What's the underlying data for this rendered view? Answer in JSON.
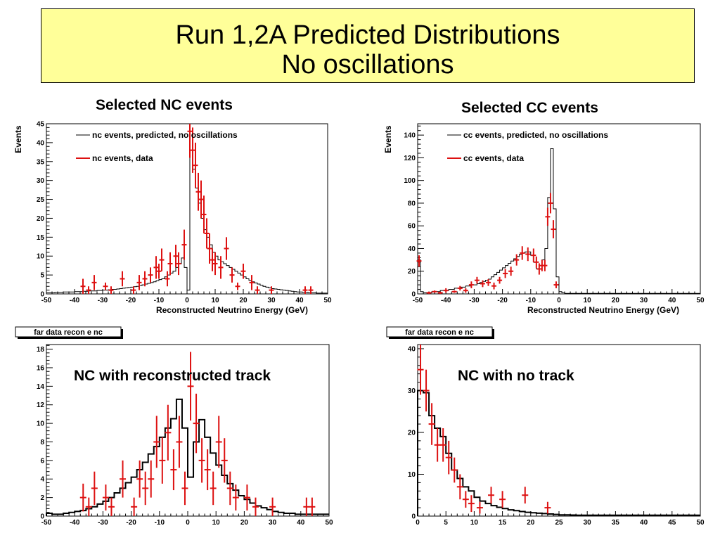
{
  "title": {
    "line1": "Run 1,2A Predicted Distributions",
    "line2": "No oscillations"
  },
  "colors": {
    "title_bg": "#ffff99",
    "prediction": "#000000",
    "data": "#dd1111"
  },
  "chart_data": [
    {
      "id": "nc",
      "type": "line",
      "title": "Selected NC events",
      "xlabel": "Reconstructed Neutrino Energy (GeV)",
      "ylabel": "Events",
      "xlim": [
        -50,
        50
      ],
      "ylim": [
        0,
        45
      ],
      "xticks": [
        -50,
        -40,
        -30,
        -20,
        -10,
        0,
        10,
        20,
        30,
        40,
        50
      ],
      "yticks": [
        0,
        5,
        10,
        15,
        20,
        25,
        30,
        35,
        40,
        45
      ],
      "grid": false,
      "legend_position": "top",
      "series": [
        {
          "name": "nc events, predicted, no oscillations",
          "kind": "step",
          "bin_width": 1,
          "x_start": -50,
          "values": [
            0.3,
            0.3,
            0.3,
            0.4,
            0.4,
            0.4,
            0.5,
            0.5,
            0.5,
            0.5,
            0.6,
            0.6,
            0.6,
            0.7,
            0.7,
            0.8,
            0.8,
            0.8,
            0.9,
            0.9,
            1.0,
            1.0,
            1.1,
            1.2,
            1.2,
            1.3,
            1.4,
            1.5,
            1.6,
            1.7,
            1.8,
            1.9,
            2.0,
            2.2,
            2.4,
            2.6,
            2.8,
            3.0,
            3.2,
            3.5,
            3.8,
            4.0,
            4.5,
            5.0,
            5.5,
            6.0,
            7.0,
            8.0,
            9.5,
            7.0,
            1.0,
            38.0,
            33.0,
            28.0,
            24.0,
            20.0,
            17.0,
            15.0,
            13.0,
            11.0,
            10.0,
            9.0,
            8.5,
            8.0,
            7.5,
            7.0,
            6.5,
            6.0,
            5.5,
            5.0,
            4.5,
            4.0,
            3.6,
            3.2,
            2.9,
            2.6,
            2.3,
            2.0,
            1.8,
            1.6,
            1.4,
            1.3,
            1.2,
            1.1,
            1.0,
            0.9,
            0.8,
            0.7,
            0.6,
            0.5,
            0.5,
            0.4,
            0.4,
            0.3,
            0.3,
            0.3,
            0.2,
            0.2,
            0.2,
            0.2
          ]
        },
        {
          "name": "nc events, data",
          "kind": "errorbar",
          "points": [
            [
              -37,
              2,
              2
            ],
            [
              -35,
              1,
              1
            ],
            [
              -33,
              3,
              2
            ],
            [
              -29,
              2,
              1
            ],
            [
              -27,
              1,
              1
            ],
            [
              -23,
              4,
              2
            ],
            [
              -19,
              1,
              1
            ],
            [
              -17,
              3,
              2
            ],
            [
              -15,
              4,
              2
            ],
            [
              -13,
              5,
              2
            ],
            [
              -11,
              7,
              3
            ],
            [
              -10,
              6,
              2
            ],
            [
              -9,
              9,
              3
            ],
            [
              -7,
              4,
              2
            ],
            [
              -6,
              8,
              3
            ],
            [
              -4,
              10,
              3
            ],
            [
              -3,
              8,
              3
            ],
            [
              -1,
              13,
              4
            ],
            [
              1,
              43,
              7
            ],
            [
              2,
              38,
              6
            ],
            [
              3,
              34,
              6
            ],
            [
              4,
              27,
              5
            ],
            [
              5,
              25,
              5
            ],
            [
              6,
              21,
              5
            ],
            [
              7,
              16,
              4
            ],
            [
              8,
              12,
              4
            ],
            [
              9,
              9,
              3
            ],
            [
              10,
              8,
              3
            ],
            [
              12,
              7,
              3
            ],
            [
              14,
              12,
              3
            ],
            [
              16,
              5,
              2
            ],
            [
              18,
              2,
              1
            ],
            [
              20,
              6,
              2
            ],
            [
              23,
              3,
              2
            ],
            [
              25,
              1,
              1
            ],
            [
              30,
              1,
              1
            ],
            [
              42,
              1,
              1
            ],
            [
              44,
              1,
              1
            ]
          ]
        }
      ]
    },
    {
      "id": "cc",
      "type": "line",
      "title": "Selected CC events",
      "xlabel": "Reconstructed Neutrino Energy (GeV)",
      "ylabel": "Events",
      "xlim": [
        -50,
        50
      ],
      "ylim": [
        0,
        150
      ],
      "xticks": [
        -50,
        -40,
        -30,
        -20,
        -10,
        0,
        10,
        20,
        30,
        40,
        50
      ],
      "yticks": [
        0,
        20,
        40,
        60,
        80,
        100,
        120,
        140
      ],
      "grid": false,
      "legend_position": "top",
      "series": [
        {
          "name": "cc events, predicted, no oscillations",
          "kind": "step",
          "bin_width": 1,
          "x_start": -50,
          "values": [
            30,
            2,
            1,
            1,
            1,
            2,
            2,
            2,
            3,
            3,
            3,
            4,
            4,
            5,
            5,
            6,
            6,
            7,
            7,
            8,
            8,
            9,
            10,
            11,
            12,
            13,
            15,
            17,
            19,
            21,
            23,
            25,
            27,
            29,
            31,
            33,
            35,
            36,
            37,
            37,
            34,
            28,
            22,
            25,
            30,
            40,
            85,
            128,
            75,
            15,
            2,
            1,
            0.5,
            0.5,
            0.5,
            0.5,
            0.5,
            0.5,
            0.5,
            0.5,
            0.5,
            0.5,
            0.5,
            0.5,
            0.5,
            0.5,
            0.5,
            0.5,
            0.5,
            0.5,
            0.5,
            0.5,
            0.5,
            0.5,
            0.5,
            0.5,
            0.5,
            0.5,
            0.5,
            0.5,
            0.5,
            0.5,
            0.5,
            0.5,
            0.5,
            0.5,
            0.5,
            0.5,
            0.5,
            0.5,
            0.5,
            0.5,
            0.5,
            0.5,
            0.5,
            0.5,
            0.5,
            0.5,
            0.5,
            0.5
          ]
        },
        {
          "name": "cc events, data",
          "kind": "errorbar",
          "points": [
            [
              -49.5,
              29,
              5
            ],
            [
              -46,
              1,
              1
            ],
            [
              -44,
              2,
              1
            ],
            [
              -42,
              1,
              1
            ],
            [
              -40,
              3,
              2
            ],
            [
              -37,
              2,
              1
            ],
            [
              -35,
              5,
              2
            ],
            [
              -33,
              3,
              2
            ],
            [
              -31,
              8,
              3
            ],
            [
              -29,
              12,
              3
            ],
            [
              -27,
              9,
              3
            ],
            [
              -25,
              10,
              3
            ],
            [
              -23,
              7,
              3
            ],
            [
              -21,
              12,
              3
            ],
            [
              -19,
              18,
              4
            ],
            [
              -17,
              20,
              4
            ],
            [
              -15,
              30,
              5
            ],
            [
              -13,
              36,
              6
            ],
            [
              -11,
              35,
              6
            ],
            [
              -9,
              34,
              6
            ],
            [
              -8,
              28,
              5
            ],
            [
              -7,
              22,
              5
            ],
            [
              -6,
              25,
              5
            ],
            [
              -5,
              25,
              5
            ],
            [
              -4,
              68,
              8
            ],
            [
              -3,
              80,
              9
            ],
            [
              -2,
              57,
              8
            ],
            [
              -1,
              8,
              3
            ]
          ]
        }
      ]
    },
    {
      "id": "nc_track",
      "type": "line",
      "title": "NC with reconstructed track",
      "tag": "far data recon e nc",
      "xlim": [
        -50,
        50
      ],
      "ylim": [
        0,
        18.5
      ],
      "xticks": [
        -50,
        -40,
        -30,
        -20,
        -10,
        0,
        10,
        20,
        30,
        40,
        50
      ],
      "yticks": [
        0,
        2,
        4,
        6,
        8,
        10,
        12,
        14,
        16,
        18
      ],
      "grid": false,
      "series": [
        {
          "kind": "step",
          "bin_width": 2,
          "x_start": -50,
          "values": [
            0.3,
            0.2,
            0.2,
            0.3,
            0.4,
            0.5,
            0.6,
            0.8,
            1.0,
            1.3,
            1.6,
            2.0,
            2.5,
            3.0,
            3.6,
            4.2,
            5.0,
            5.8,
            6.7,
            7.5,
            8.5,
            9.5,
            10.5,
            12.6,
            9.5,
            4.2,
            8.0,
            10.4,
            8.5,
            6.8,
            5.5,
            4.4,
            3.5,
            2.8,
            2.2,
            1.8,
            1.4,
            1.1,
            0.9,
            0.7,
            0.5,
            0.4,
            0.3,
            0.3,
            0.2,
            0.2,
            0.2,
            0.2,
            0.2,
            0.2
          ]
        },
        {
          "kind": "errorbar",
          "points": [
            [
              -37,
              2,
              1.5
            ],
            [
              -35,
              1,
              1
            ],
            [
              -33,
              3,
              1.8
            ],
            [
              -29,
              2,
              1.4
            ],
            [
              -27,
              1,
              1
            ],
            [
              -23,
              4,
              2
            ],
            [
              -19,
              1,
              1
            ],
            [
              -17,
              4,
              2
            ],
            [
              -15,
              3,
              1.8
            ],
            [
              -13,
              4,
              2
            ],
            [
              -11,
              8,
              2.8
            ],
            [
              -9,
              6,
              2.5
            ],
            [
              -7,
              9,
              3
            ],
            [
              -5,
              5,
              2.2
            ],
            [
              -3,
              8,
              2.8
            ],
            [
              -1,
              3,
              1.8
            ],
            [
              1,
              14,
              3.7
            ],
            [
              3,
              10,
              3.2
            ],
            [
              5,
              6,
              2.4
            ],
            [
              7,
              5,
              2.2
            ],
            [
              9,
              3,
              1.8
            ],
            [
              11,
              8,
              2.8
            ],
            [
              13,
              6,
              2.4
            ],
            [
              15,
              3,
              1.8
            ],
            [
              17,
              2,
              1.4
            ],
            [
              21,
              2,
              1.4
            ],
            [
              24,
              1,
              1
            ],
            [
              30,
              1,
              1
            ],
            [
              42,
              1,
              1
            ],
            [
              44,
              1,
              1
            ]
          ]
        }
      ]
    },
    {
      "id": "nc_notrack",
      "type": "line",
      "title": "NC with no track",
      "tag": "far data recon e nc",
      "xlim": [
        0,
        50
      ],
      "ylim": [
        0,
        41
      ],
      "xticks": [
        0,
        5,
        10,
        15,
        20,
        25,
        30,
        35,
        40,
        45,
        50
      ],
      "yticks": [
        0,
        10,
        20,
        30,
        40
      ],
      "grid": false,
      "series": [
        {
          "kind": "step",
          "bin_width": 1,
          "x_start": 0,
          "values": [
            30,
            29.5,
            24,
            21,
            19,
            15,
            11,
            9,
            7,
            6,
            4.5,
            3.6,
            3.0,
            2.5,
            2.1,
            1.8,
            1.5,
            1.3,
            1.1,
            0.9,
            0.8,
            0.7,
            0.6,
            0.5,
            0.4,
            0.3,
            0.3,
            0.25,
            0.2,
            0.2,
            0.2,
            0.2,
            0.2,
            0.2,
            0.2,
            0.2,
            0.2,
            0.2,
            0.2,
            0.2,
            0.2,
            0.2,
            0.2,
            0.2,
            0.2,
            0.2,
            0.2,
            0.2,
            0.2,
            0.2
          ]
        },
        {
          "kind": "errorbar",
          "points": [
            [
              0.5,
              35,
              6
            ],
            [
              1.5,
              30,
              5
            ],
            [
              2.5,
              22,
              5
            ],
            [
              3.5,
              17,
              4
            ],
            [
              4.5,
              17,
              4
            ],
            [
              5.5,
              14,
              4
            ],
            [
              6.5,
              11,
              3
            ],
            [
              7.5,
              7,
              3
            ],
            [
              8.5,
              4,
              2
            ],
            [
              9.5,
              3,
              2
            ],
            [
              11,
              2,
              1.4
            ],
            [
              13,
              5,
              2
            ],
            [
              15,
              4,
              2
            ],
            [
              19,
              5,
              2
            ],
            [
              23,
              2,
              1.4
            ]
          ]
        }
      ]
    }
  ]
}
